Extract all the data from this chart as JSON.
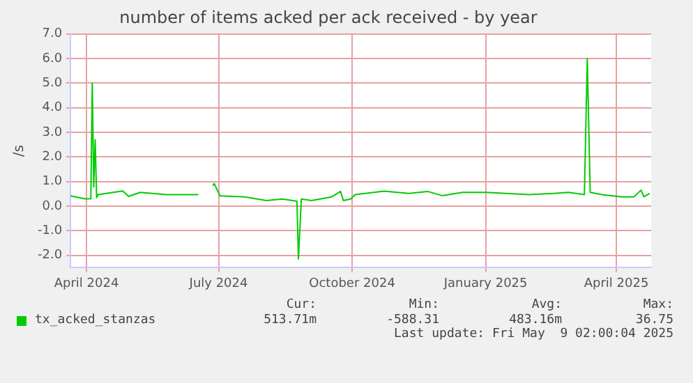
{
  "chart_data": {
    "type": "line",
    "title": "number of items acked per ack received - by year",
    "ylabel": "/s",
    "x": [
      "2024-04-04",
      "2024-04-14",
      "2024-04-18",
      "2024-04-19",
      "2024-04-20",
      "2024-04-21",
      "2024-04-22",
      "2024-04-23",
      "2024-05-10",
      "2024-05-14",
      "2024-05-22",
      "2024-06-09",
      "2024-07-01",
      "2024-07-03",
      "2024-07-11",
      "2024-07-12",
      "2024-07-16",
      "2024-08-02",
      "2024-08-17",
      "2024-08-28",
      "2024-09-07",
      "2024-09-08",
      "2024-09-10",
      "2024-09-17",
      "2024-10-01",
      "2024-10-07",
      "2024-10-09",
      "2024-10-14",
      "2024-10-17",
      "2024-11-06",
      "2024-11-23",
      "2024-12-06",
      "2024-12-16",
      "2024-12-30",
      "2025-01-15",
      "2025-01-29",
      "2025-02-14",
      "2025-03-03",
      "2025-03-13",
      "2025-03-24",
      "2025-03-26",
      "2025-03-28",
      "2025-04-05",
      "2025-04-19",
      "2025-04-27",
      "2025-05-02",
      "2025-05-04",
      "2025-05-08"
    ],
    "series": [
      {
        "name": "tx_acked_stanzas",
        "color": "#00cc00",
        "values": [
          0.42,
          0.3,
          0.3,
          5.0,
          0.78,
          2.7,
          0.35,
          0.47,
          0.62,
          0.4,
          0.56,
          0.47,
          0.47,
          null,
          0.83,
          0.92,
          0.42,
          0.38,
          0.23,
          0.29,
          0.2,
          -2.15,
          0.29,
          0.23,
          0.38,
          0.6,
          0.23,
          0.29,
          0.47,
          0.61,
          0.52,
          0.6,
          0.43,
          0.56,
          0.56,
          0.52,
          0.47,
          0.52,
          0.56,
          0.47,
          6.0,
          0.56,
          0.47,
          0.38,
          0.38,
          0.65,
          0.38,
          0.52
        ]
      }
    ],
    "xlim": [
      "2024-04-04",
      "2025-05-09"
    ],
    "xticks": [
      {
        "value": "2024-04-15",
        "label": "April 2024"
      },
      {
        "value": "2024-07-15",
        "label": "July 2024"
      },
      {
        "value": "2024-10-15",
        "label": "October 2024"
      },
      {
        "value": "2025-01-15",
        "label": "January 2025"
      },
      {
        "value": "2025-04-15",
        "label": "April 2025"
      }
    ],
    "ylim": [
      -2.5,
      7.0
    ],
    "yticks": [
      {
        "value": -2,
        "label": "-2.0"
      },
      {
        "value": -1,
        "label": "-1.0"
      },
      {
        "value": 0,
        "label": "0.0"
      },
      {
        "value": 1,
        "label": "1.0"
      },
      {
        "value": 2,
        "label": "2.0"
      },
      {
        "value": 3,
        "label": "3.0"
      },
      {
        "value": 4,
        "label": "4.0"
      },
      {
        "value": 5,
        "label": "5.0"
      },
      {
        "value": 6,
        "label": "6.0"
      },
      {
        "value": 7,
        "label": "7.0"
      }
    ],
    "grid": true,
    "legend": "bottom left",
    "marker": "none",
    "line_style": "solid",
    "annotations": [
      "Cur:",
      "Min:",
      "Avg:",
      "Max:",
      "513.71m",
      "-588.31",
      "483.16m",
      "36.75",
      "Last update: Fri May  9 02:00:04 2025"
    ]
  }
}
